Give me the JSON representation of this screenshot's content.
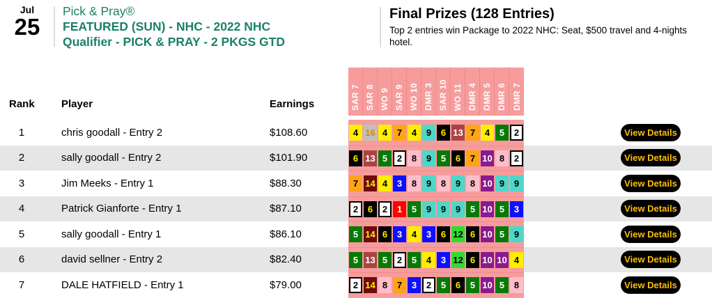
{
  "header": {
    "date": {
      "month": "Jul",
      "day": "25"
    },
    "title_lines": {
      "line1": "Pick & Pray®",
      "line2": "FEATURED (SUN) - NHC - 2022 NHC",
      "line3": "Qualifier - PICK & PRAY - 2 PKGS GTD"
    },
    "prizes": {
      "title": "Final Prizes (128 Entries)",
      "description": "Top 2 entries win Package to 2022 NHC: Seat, $500 travel and 4-nights hotel."
    }
  },
  "table": {
    "column_headers": {
      "rank": "Rank",
      "player": "Player",
      "earnings": "Earnings"
    },
    "race_columns": [
      "SAR 7",
      "SAR 8",
      "WO 9",
      "SAR 9",
      "WO 10",
      "DMR 3",
      "SAR 10",
      "WO 11",
      "DMR 4",
      "DMR 5",
      "DMR 6",
      "DMR 7"
    ],
    "view_details_label": "View Details",
    "rows": [
      {
        "rank": "1",
        "player": "chris goodall - Entry 2",
        "earnings": "$108.60",
        "picks": [
          4,
          16,
          4,
          7,
          4,
          9,
          6,
          13,
          7,
          4,
          5,
          2
        ]
      },
      {
        "rank": "2",
        "player": "sally goodall - Entry 2",
        "earnings": "$101.90",
        "picks": [
          6,
          13,
          5,
          2,
          8,
          9,
          5,
          6,
          7,
          10,
          8,
          2
        ]
      },
      {
        "rank": "3",
        "player": "Jim Meeks - Entry 1",
        "earnings": "$88.30",
        "picks": [
          7,
          14,
          4,
          3,
          8,
          9,
          8,
          9,
          8,
          10,
          9,
          9
        ]
      },
      {
        "rank": "4",
        "player": "Patrick Gianforte - Entry 1",
        "earnings": "$87.10",
        "picks": [
          2,
          6,
          2,
          1,
          5,
          9,
          9,
          9,
          5,
          10,
          5,
          3
        ]
      },
      {
        "rank": "5",
        "player": "sally goodall - Entry 1",
        "earnings": "$86.10",
        "picks": [
          5,
          14,
          6,
          3,
          4,
          3,
          6,
          12,
          6,
          10,
          5,
          9
        ]
      },
      {
        "rank": "6",
        "player": "david sellner - Entry 2",
        "earnings": "$82.40",
        "picks": [
          5,
          13,
          5,
          2,
          5,
          4,
          3,
          12,
          6,
          10,
          10,
          4
        ]
      },
      {
        "rank": "7",
        "player": "DALE HATFIELD - Entry 1",
        "earnings": "$79.00",
        "picks": [
          2,
          14,
          8,
          7,
          3,
          2,
          5,
          6,
          5,
          10,
          5,
          8
        ]
      }
    ]
  },
  "colors": {
    "accent_green": "#1B8168",
    "panel_pink": "#F69C9C",
    "panel_pink_divider": "#EE8A8A",
    "row_alt_gray": "#E6E6E6",
    "button_bg": "#000000",
    "button_text": "#FFBF00",
    "saddle_cloths": {
      "1": {
        "bg": "#FF0000",
        "text": "#FFFFFF"
      },
      "2": {
        "bg": "#FFFFFF",
        "text": "#000000",
        "border": "#000000"
      },
      "3": {
        "bg": "#0F0FFF",
        "text": "#FFFFFF"
      },
      "4": {
        "bg": "#FFEE00",
        "text": "#000000"
      },
      "5": {
        "bg": "#057A05",
        "text": "#FFFFFF"
      },
      "6": {
        "bg": "#000000",
        "text": "#FFEE00"
      },
      "7": {
        "bg": "#FFA317",
        "text": "#000000"
      },
      "8": {
        "bg": "#FFBDC9",
        "text": "#000000"
      },
      "9": {
        "bg": "#4FD6C9",
        "text": "#000000"
      },
      "10": {
        "bg": "#8A1A8E",
        "text": "#FFFFFF"
      },
      "12": {
        "bg": "#2EDD2E",
        "text": "#000000"
      },
      "13": {
        "bg": "#A94444",
        "text": "#FFFFFF"
      },
      "14": {
        "bg": "#6E0B0B",
        "text": "#FFEE00"
      },
      "16": {
        "bg": "#C0C0C0",
        "text": "#D88A00"
      }
    }
  }
}
